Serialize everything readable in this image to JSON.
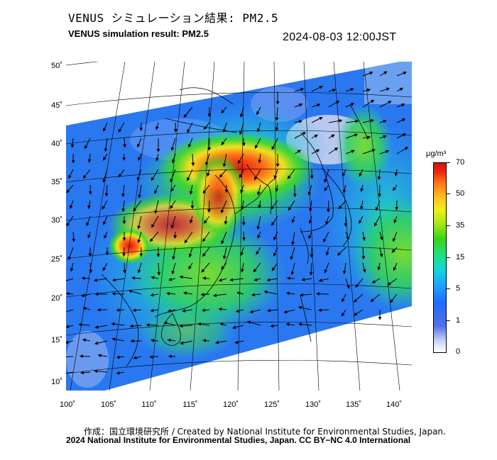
{
  "header": {
    "title_jp": "VENUS シミュレーション結果: PM2.5",
    "title_en": "VENUS simulation result: PM2.5",
    "timestamp": "2024-08-03 12:00JST"
  },
  "map": {
    "lat_labels": [
      "50˚",
      "45˚",
      "40˚",
      "35˚",
      "30˚",
      "25˚",
      "20˚",
      "15˚",
      "10˚"
    ],
    "lon_labels": [
      "100˚",
      "105˚",
      "110˚",
      "115˚",
      "120˚",
      "125˚",
      "130˚",
      "135˚",
      "140˚"
    ]
  },
  "colorbar": {
    "unit": "μg/m³",
    "ticks": [
      "70",
      "50",
      "35",
      "15",
      "5",
      "1",
      "0"
    ],
    "colors": [
      "#ffffff",
      "#5070e8",
      "#1ea0ff",
      "#14d8d8",
      "#38d418",
      "#f0f01a",
      "#ff7a18",
      "#d01010"
    ]
  },
  "credits": {
    "line1": "作成：国立環境研究所 / Created by National Institute for Environmental Studies, Japan.",
    "line2": "2024 National Institute for Environmental Studies, Japan. CC BY−NC 4.0 International"
  }
}
